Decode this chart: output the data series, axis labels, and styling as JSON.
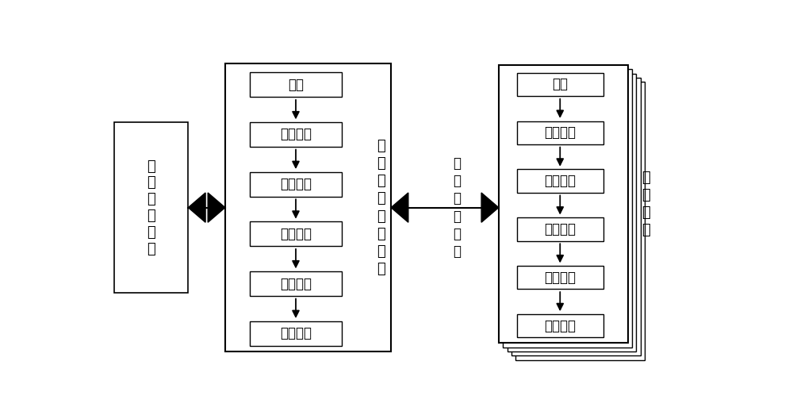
{
  "bg_color": "#ffffff",
  "box_edge_color": "#000000",
  "box_fill_color": "#ffffff",
  "text_color": "#000000",
  "flow_steps": [
    "开始",
    "用户输入",
    "数据生成",
    "创建线程",
    "数据诊断",
    "报告提交"
  ],
  "left_label": "系\n统\n管\n理\n终\n端",
  "center_label": "系\n统\n主\n控\n管\n理\n模\n块",
  "middle_label": "诊\n断\n测\n试\n接\n口",
  "right_label": "系\n统\n节\n点",
  "font_size_flow": 13,
  "font_size_label": 13
}
